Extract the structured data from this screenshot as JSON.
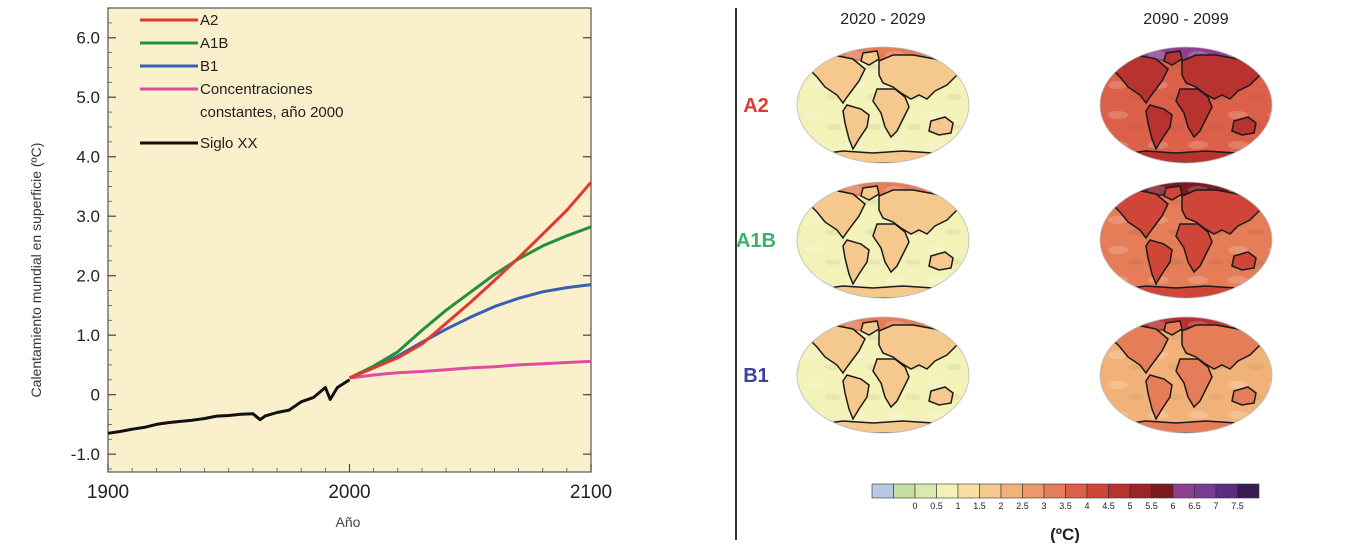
{
  "chart_data": [
    {
      "type": "line",
      "xlabel": "Año",
      "ylabel": "Calentamiento mundial en superficie (ºC)",
      "xlim": [
        1900,
        2100
      ],
      "ylim": [
        -1.3,
        6.5
      ],
      "xticks": [
        "1900",
        "2000",
        "2100"
      ],
      "yticks": [
        "6.0",
        "5.0",
        "4.0",
        "3.0",
        "2.0",
        "1.0",
        "0",
        "-1.0"
      ],
      "ytick_values": [
        6,
        5,
        4,
        3,
        2,
        1,
        0,
        -1
      ],
      "legend_position": "top-left",
      "background": "#faf0cc",
      "series": [
        {
          "name": "A2",
          "color": "#e03a2f",
          "x": [
            2000,
            2010,
            2020,
            2030,
            2040,
            2050,
            2060,
            2070,
            2080,
            2090,
            2100
          ],
          "y": [
            0.28,
            0.45,
            0.62,
            0.85,
            1.2,
            1.55,
            1.92,
            2.3,
            2.7,
            3.1,
            3.57
          ]
        },
        {
          "name": "A1B",
          "color": "#22913b",
          "x": [
            2000,
            2010,
            2020,
            2030,
            2040,
            2050,
            2060,
            2070,
            2080,
            2090,
            2100
          ],
          "y": [
            0.28,
            0.48,
            0.72,
            1.08,
            1.42,
            1.72,
            2.02,
            2.28,
            2.5,
            2.67,
            2.82
          ]
        },
        {
          "name": "B1",
          "color": "#3a5fb0",
          "x": [
            2000,
            2010,
            2020,
            2030,
            2040,
            2050,
            2060,
            2070,
            2080,
            2090,
            2100
          ],
          "y": [
            0.28,
            0.45,
            0.65,
            0.88,
            1.1,
            1.3,
            1.48,
            1.62,
            1.73,
            1.8,
            1.85
          ]
        },
        {
          "name": "Concentraciones",
          "name_line2": "constantes, año 2000",
          "color": "#e04ca0",
          "x": [
            2000,
            2010,
            2020,
            2030,
            2040,
            2050,
            2060,
            2070,
            2080,
            2090,
            2100
          ],
          "y": [
            0.28,
            0.33,
            0.37,
            0.39,
            0.42,
            0.45,
            0.47,
            0.5,
            0.52,
            0.54,
            0.56
          ]
        },
        {
          "name": "Siglo XX",
          "color": "#111111",
          "x": [
            1900,
            1905,
            1910,
            1915,
            1920,
            1925,
            1930,
            1935,
            1940,
            1945,
            1950,
            1955,
            1960,
            1963,
            1965,
            1970,
            1975,
            1980,
            1985,
            1990,
            1992,
            1995,
            2000
          ],
          "y": [
            -0.65,
            -0.62,
            -0.58,
            -0.55,
            -0.5,
            -0.47,
            -0.45,
            -0.43,
            -0.4,
            -0.36,
            -0.35,
            -0.33,
            -0.32,
            -0.42,
            -0.36,
            -0.3,
            -0.26,
            -0.12,
            -0.05,
            0.12,
            -0.08,
            0.12,
            0.25
          ]
        }
      ]
    },
    {
      "type": "heatmap",
      "columns": [
        "2020 - 2029",
        "2090 - 2099"
      ],
      "rows": [
        {
          "label": "A2",
          "color": "#e03a2f",
          "mean_warming": [
            1.1,
            4.0
          ]
        },
        {
          "label": "A1B",
          "color": "#3db06e",
          "mean_warming": [
            1.2,
            3.4
          ]
        },
        {
          "label": "B1",
          "color": "#3f3f9e",
          "mean_warming": [
            1.1,
            2.3
          ]
        }
      ],
      "colorbar": {
        "unit": "(ºC)",
        "tick_labels": [
          "0",
          "0.5",
          "1",
          "1.5",
          "2",
          "2.5",
          "3",
          "3.5",
          "4",
          "4.5",
          "5",
          "5.5",
          "6",
          "6.5",
          "7",
          "7.5"
        ],
        "colors": [
          "#b7c7e4",
          "#c5dfa0",
          "#dbe9ad",
          "#f3f2b8",
          "#f7dfa6",
          "#f5c98e",
          "#f1b27a",
          "#ec9868",
          "#e57d58",
          "#dc6049",
          "#cf4639",
          "#b83330",
          "#9a2527",
          "#7c1a22",
          "#8e3f8f",
          "#7a3b93",
          "#5b2d7e",
          "#3a1c55"
        ]
      }
    }
  ]
}
